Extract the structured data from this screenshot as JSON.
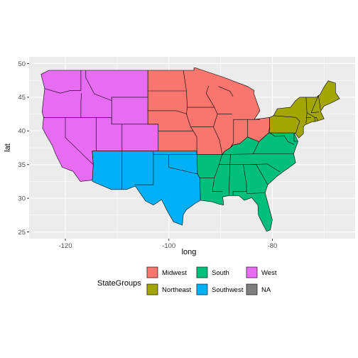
{
  "chart_data": {
    "type": "map",
    "xlabel": "long",
    "ylabel": "lat",
    "xlim": [
      -127,
      -64
    ],
    "ylim": [
      24,
      51
    ],
    "x_ticks": [
      -120,
      -100,
      -80
    ],
    "x_tick_labels": [
      "-120",
      "-100",
      "-80"
    ],
    "y_ticks": [
      25,
      30,
      35,
      40,
      45,
      50
    ],
    "y_tick_labels": [
      "25",
      "30",
      "35",
      "40",
      "45",
      "50"
    ],
    "grid": true,
    "legend_position": "bottom",
    "legend_title": "StateGroups",
    "groups": [
      {
        "name": "Midwest",
        "color": "#F8766D"
      },
      {
        "name": "Northeast",
        "color": "#A3A500"
      },
      {
        "name": "South",
        "color": "#00BF7D"
      },
      {
        "name": "Southwest",
        "color": "#00B0F6"
      },
      {
        "name": "West",
        "color": "#E76BF3"
      },
      {
        "name": "NA",
        "color": "#7F7F7F"
      }
    ],
    "regions": [
      {
        "group": "West",
        "polygon": [
          [
            -124.7,
            48.4
          ],
          [
            -123.2,
            49.0
          ],
          [
            -104.05,
            49.0
          ],
          [
            -104.05,
            41.0
          ],
          [
            -102.05,
            41.0
          ],
          [
            -102.05,
            37.0
          ],
          [
            -114.8,
            37.0
          ],
          [
            -114.6,
            35.0
          ],
          [
            -114.7,
            32.7
          ],
          [
            -117.1,
            32.5
          ],
          [
            -118.5,
            34.0
          ],
          [
            -120.6,
            34.6
          ],
          [
            -121.9,
            36.6
          ],
          [
            -122.5,
            37.8
          ],
          [
            -123.8,
            39.5
          ],
          [
            -124.4,
            40.4
          ],
          [
            -124.2,
            42.0
          ],
          [
            -124.5,
            42.8
          ],
          [
            -124.0,
            46.3
          ],
          [
            -124.7,
            48.4
          ]
        ]
      },
      {
        "group": "Southwest",
        "polygon": [
          [
            -114.8,
            37.0
          ],
          [
            -94.6,
            37.0
          ],
          [
            -94.45,
            33.6
          ],
          [
            -94.0,
            33.0
          ],
          [
            -93.9,
            29.7
          ],
          [
            -94.8,
            29.3
          ],
          [
            -96.6,
            28.3
          ],
          [
            -97.2,
            27.6
          ],
          [
            -97.4,
            26.0
          ],
          [
            -99.1,
            26.5
          ],
          [
            -100.3,
            28.1
          ],
          [
            -101.4,
            29.8
          ],
          [
            -103.0,
            29.0
          ],
          [
            -104.5,
            29.6
          ],
          [
            -106.5,
            31.8
          ],
          [
            -108.2,
            31.3
          ],
          [
            -111.1,
            31.3
          ],
          [
            -114.8,
            32.5
          ],
          [
            -114.6,
            35.0
          ],
          [
            -114.8,
            37.0
          ]
        ]
      },
      {
        "group": "Midwest",
        "polygon": [
          [
            -104.05,
            49.0
          ],
          [
            -95.15,
            49.0
          ],
          [
            -95.15,
            49.35
          ],
          [
            -94.8,
            49.35
          ],
          [
            -89.6,
            48.0
          ],
          [
            -84.8,
            46.6
          ],
          [
            -83.5,
            46.0
          ],
          [
            -83.6,
            45.6
          ],
          [
            -82.4,
            43.0
          ],
          [
            -83.5,
            41.7
          ],
          [
            -80.52,
            42.0
          ],
          [
            -80.52,
            40.6
          ],
          [
            -80.7,
            39.7
          ],
          [
            -82.6,
            38.4
          ],
          [
            -84.8,
            39.1
          ],
          [
            -86.3,
            38.1
          ],
          [
            -87.6,
            37.9
          ],
          [
            -88.1,
            37.5
          ],
          [
            -89.15,
            37.0
          ],
          [
            -89.7,
            36.5
          ],
          [
            -94.6,
            36.5
          ],
          [
            -94.6,
            37.0
          ],
          [
            -102.05,
            37.0
          ],
          [
            -102.05,
            41.0
          ],
          [
            -104.05,
            41.0
          ],
          [
            -104.05,
            49.0
          ]
        ]
      },
      {
        "group": "South",
        "polygon": [
          [
            -94.6,
            36.5
          ],
          [
            -89.7,
            36.5
          ],
          [
            -89.15,
            37.0
          ],
          [
            -88.1,
            37.5
          ],
          [
            -87.6,
            37.9
          ],
          [
            -86.3,
            38.1
          ],
          [
            -84.8,
            39.1
          ],
          [
            -82.6,
            38.4
          ],
          [
            -80.7,
            39.7
          ],
          [
            -79.5,
            39.72
          ],
          [
            -75.8,
            39.72
          ],
          [
            -75.05,
            38.45
          ],
          [
            -75.9,
            36.6
          ],
          [
            -75.5,
            35.3
          ],
          [
            -76.5,
            34.7
          ],
          [
            -78.0,
            33.9
          ],
          [
            -79.2,
            33.2
          ],
          [
            -80.9,
            32.0
          ],
          [
            -81.4,
            30.8
          ],
          [
            -80.0,
            26.8
          ],
          [
            -80.4,
            25.3
          ],
          [
            -81.1,
            25.1
          ],
          [
            -81.8,
            26.1
          ],
          [
            -82.7,
            27.5
          ],
          [
            -82.8,
            29.0
          ],
          [
            -84.0,
            30.1
          ],
          [
            -85.4,
            29.7
          ],
          [
            -86.5,
            30.4
          ],
          [
            -88.4,
            30.4
          ],
          [
            -89.6,
            30.2
          ],
          [
            -89.4,
            29.0
          ],
          [
            -90.2,
            29.1
          ],
          [
            -91.8,
            29.5
          ],
          [
            -93.9,
            29.7
          ],
          [
            -94.0,
            33.0
          ],
          [
            -94.45,
            33.6
          ],
          [
            -94.6,
            37.0
          ],
          [
            -94.6,
            36.5
          ]
        ]
      },
      {
        "group": "Northeast",
        "polygon": [
          [
            -80.52,
            42.0
          ],
          [
            -79.76,
            42.27
          ],
          [
            -79.05,
            43.3
          ],
          [
            -76.5,
            43.5
          ],
          [
            -75.5,
            44.5
          ],
          [
            -74.7,
            45.0
          ],
          [
            -71.5,
            45.0
          ],
          [
            -70.8,
            45.4
          ],
          [
            -70.1,
            46.4
          ],
          [
            -69.2,
            47.45
          ],
          [
            -67.8,
            47.1
          ],
          [
            -67.8,
            45.7
          ],
          [
            -67.0,
            44.8
          ],
          [
            -68.5,
            44.2
          ],
          [
            -70.0,
            43.7
          ],
          [
            -70.7,
            42.9
          ],
          [
            -70.0,
            41.8
          ],
          [
            -71.2,
            41.5
          ],
          [
            -72.5,
            41.3
          ],
          [
            -73.7,
            40.9
          ],
          [
            -74.0,
            40.6
          ],
          [
            -74.0,
            39.6
          ],
          [
            -74.9,
            38.95
          ],
          [
            -75.5,
            39.6
          ],
          [
            -75.8,
            39.72
          ],
          [
            -79.5,
            39.72
          ],
          [
            -80.52,
            39.72
          ],
          [
            -80.52,
            42.0
          ]
        ]
      }
    ],
    "state_lines": [
      [
        [
          -117.0,
          49.0
        ],
        [
          -117.0,
          46.0
        ],
        [
          -119.0,
          46.0
        ],
        [
          -121.0,
          45.6
        ],
        [
          -124.0,
          46.3
        ]
      ],
      [
        [
          -116.9,
          45.6
        ],
        [
          -117.0,
          44.3
        ],
        [
          -117.0,
          42.0
        ],
        [
          -120.0,
          42.0
        ],
        [
          -124.2,
          42.0
        ]
      ],
      [
        [
          -120.0,
          42.0
        ],
        [
          -120.0,
          39.0
        ],
        [
          -114.6,
          35.0
        ]
      ],
      [
        [
          -117.0,
          42.0
        ],
        [
          -111.05,
          42.0
        ],
        [
          -111.05,
          41.0
        ],
        [
          -104.05,
          41.0
        ]
      ],
      [
        [
          -114.05,
          42.0
        ],
        [
          -114.05,
          37.0
        ]
      ],
      [
        [
          -111.05,
          45.0
        ],
        [
          -111.05,
          41.0
        ]
      ],
      [
        [
          -116.05,
          49.0
        ],
        [
          -116.05,
          47.9
        ],
        [
          -114.4,
          45.5
        ],
        [
          -111.05,
          44.5
        ],
        [
          -111.05,
          45.0
        ],
        [
          -104.05,
          45.0
        ]
      ],
      [
        [
          -109.05,
          41.0
        ],
        [
          -109.05,
          37.0
        ]
      ],
      [
        [
          -104.05,
          45.94
        ],
        [
          -96.6,
          45.94
        ]
      ],
      [
        [
          -104.05,
          43.0
        ],
        [
          -98.5,
          43.0
        ],
        [
          -96.45,
          42.5
        ]
      ],
      [
        [
          -102.05,
          40.0
        ],
        [
          -95.3,
          40.0
        ]
      ],
      [
        [
          -109.05,
          37.0
        ],
        [
          -109.05,
          31.3
        ]
      ],
      [
        [
          -103.0,
          37.0
        ],
        [
          -103.0,
          32.0
        ],
        [
          -106.6,
          32.0
        ]
      ],
      [
        [
          -103.0,
          36.5
        ],
        [
          -94.6,
          36.5
        ]
      ],
      [
        [
          -100.0,
          36.5
        ],
        [
          -100.0,
          34.6
        ],
        [
          -94.45,
          33.6
        ]
      ],
      [
        [
          -97.2,
          49.0
        ],
        [
          -96.6,
          45.94
        ],
        [
          -96.45,
          43.5
        ],
        [
          -96.6,
          42.5
        ],
        [
          -95.8,
          40.6
        ],
        [
          -95.3,
          40.0
        ],
        [
          -94.6,
          39.1
        ],
        [
          -94.6,
          37.0
        ]
      ],
      [
        [
          -96.45,
          43.5
        ],
        [
          -91.2,
          43.5
        ]
      ],
      [
        [
          -92.3,
          46.7
        ],
        [
          -92.8,
          45.6
        ],
        [
          -91.2,
          43.5
        ],
        [
          -90.6,
          42.5
        ],
        [
          -91.4,
          40.6
        ],
        [
          -90.2,
          38.6
        ],
        [
          -89.7,
          36.5
        ]
      ],
      [
        [
          -95.8,
          40.6
        ],
        [
          -91.4,
          40.6
        ]
      ],
      [
        [
          -90.6,
          42.5
        ],
        [
          -87.8,
          42.5
        ]
      ],
      [
        [
          -87.5,
          41.7
        ],
        [
          -87.5,
          38.3
        ],
        [
          -88.1,
          37.5
        ]
      ],
      [
        [
          -84.8,
          41.7
        ],
        [
          -84.8,
          39.1
        ]
      ],
      [
        [
          -87.5,
          41.7
        ],
        [
          -82.4,
          41.7
        ]
      ],
      [
        [
          -90.4,
          46.6
        ],
        [
          -88.2,
          45.9
        ],
        [
          -87.6,
          45.1
        ]
      ],
      [
        [
          -89.7,
          36.5
        ],
        [
          -81.7,
          36.6
        ],
        [
          -75.9,
          36.6
        ]
      ],
      [
        [
          -88.1,
          36.5
        ],
        [
          -88.2,
          35.0
        ],
        [
          -88.4,
          30.4
        ]
      ],
      [
        [
          -91.2,
          33.0
        ],
        [
          -90.3,
          35.0
        ],
        [
          -89.7,
          36.5
        ]
      ],
      [
        [
          -94.0,
          33.0
        ],
        [
          -91.2,
          33.0
        ],
        [
          -91.6,
          31.0
        ],
        [
          -89.6,
          31.0
        ]
      ],
      [
        [
          -85.6,
          35.0
        ],
        [
          -85.0,
          32.0
        ],
        [
          -85.0,
          31.0
        ],
        [
          -87.6,
          31.0
        ],
        [
          -87.6,
          30.4
        ]
      ],
      [
        [
          -90.3,
          35.0
        ],
        [
          -83.1,
          35.0
        ]
      ],
      [
        [
          -85.0,
          31.0
        ],
        [
          -84.9,
          30.7
        ],
        [
          -81.4,
          30.8
        ]
      ],
      [
        [
          -83.1,
          35.0
        ],
        [
          -80.9,
          32.0
        ]
      ],
      [
        [
          -84.3,
          35.0
        ],
        [
          -81.0,
          35.1
        ],
        [
          -78.5,
          33.9
        ]
      ],
      [
        [
          -83.7,
          36.6
        ],
        [
          -82.6,
          38.4
        ]
      ],
      [
        [
          -80.5,
          39.7
        ],
        [
          -79.5,
          39.2
        ],
        [
          -77.7,
          39.3
        ],
        [
          -77.0,
          38.4
        ],
        [
          -75.8,
          38.0
        ]
      ],
      [
        [
          -75.8,
          39.72
        ],
        [
          -75.8,
          38.45
        ],
        [
          -75.05,
          38.45
        ]
      ],
      [
        [
          -79.76,
          42.27
        ],
        [
          -75.4,
          42.0
        ],
        [
          -74.7,
          41.4
        ],
        [
          -75.1,
          40.6
        ],
        [
          -75.5,
          39.6
        ]
      ],
      [
        [
          -73.5,
          45.0
        ],
        [
          -73.3,
          42.7
        ],
        [
          -73.5,
          41.1
        ]
      ],
      [
        [
          -73.3,
          42.7
        ],
        [
          -71.8,
          42.0
        ],
        [
          -71.8,
          41.3
        ]
      ],
      [
        [
          -72.5,
          42.0
        ],
        [
          -73.5,
          42.0
        ]
      ],
      [
        [
          -71.2,
          41.5
        ],
        [
          -71.5,
          42.0
        ],
        [
          -71.8,
          42.0
        ]
      ],
      [
        [
          -72.5,
          42.7
        ],
        [
          -71.1,
          45.3
        ]
      ],
      [
        [
          -72.5,
          42.7
        ],
        [
          -71.0,
          42.8
        ]
      ],
      [
        [
          -71.1,
          45.3
        ],
        [
          -70.7,
          43.1
        ]
      ]
    ]
  }
}
